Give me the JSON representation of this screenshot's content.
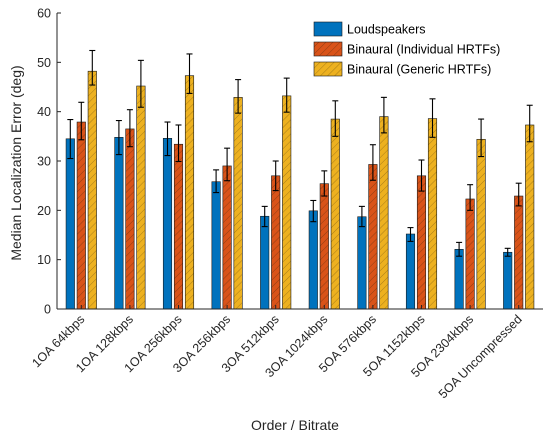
{
  "chart_data": {
    "type": "bar",
    "title": "",
    "xlabel": "Order / Bitrate",
    "ylabel": "Median Localization Error (deg)",
    "ylim": [
      0,
      60
    ],
    "yticks": [
      0,
      10,
      20,
      30,
      40,
      50,
      60
    ],
    "grid": false,
    "legend_position": "top-right",
    "categories": [
      "1OA 64kbps",
      "1OA 128kbps",
      "1OA 256kbps",
      "3OA 256kbps",
      "3OA 512kbps",
      "3OA 1024kbps",
      "5OA 576kbps",
      "5OA 1152kbps",
      "5OA 2304kbps",
      "5OA Uncompressed"
    ],
    "series": [
      {
        "name": "Loudspeakers",
        "color": "#0072BD",
        "pattern": "solid",
        "values": [
          34.5,
          34.8,
          34.6,
          25.8,
          18.8,
          19.9,
          18.7,
          15.2,
          12.1,
          11.5
        ],
        "err_low": [
          4.0,
          3.5,
          3.5,
          2.2,
          2.1,
          2.2,
          2.0,
          1.5,
          1.4,
          0.8
        ],
        "err_high": [
          3.9,
          3.4,
          3.3,
          2.4,
          2.0,
          2.1,
          2.1,
          1.3,
          1.4,
          0.8
        ]
      },
      {
        "name": "Binaural (Individual HRTFs)",
        "color": "#D95319",
        "pattern": "hatched",
        "values": [
          37.9,
          36.5,
          33.4,
          29.0,
          27.0,
          25.4,
          29.3,
          27.0,
          22.3,
          22.9
        ],
        "err_low": [
          3.6,
          3.6,
          3.5,
          3.0,
          3.0,
          2.5,
          3.2,
          3.1,
          2.3,
          2.0
        ],
        "err_high": [
          4.0,
          3.9,
          3.9,
          3.6,
          3.0,
          2.6,
          4.0,
          3.2,
          2.9,
          2.6
        ]
      },
      {
        "name": "Binaural (Generic HRTFs)",
        "color": "#EDB120",
        "pattern": "hatched",
        "values": [
          48.2,
          45.2,
          47.3,
          42.9,
          43.2,
          38.5,
          39.0,
          38.6,
          34.4,
          37.3
        ],
        "err_low": [
          2.8,
          4.3,
          3.6,
          3.2,
          3.3,
          3.5,
          3.3,
          3.8,
          3.5,
          3.4
        ],
        "err_high": [
          4.2,
          5.2,
          4.4,
          3.6,
          3.6,
          3.7,
          3.9,
          4.0,
          4.1,
          4.0
        ]
      }
    ]
  }
}
